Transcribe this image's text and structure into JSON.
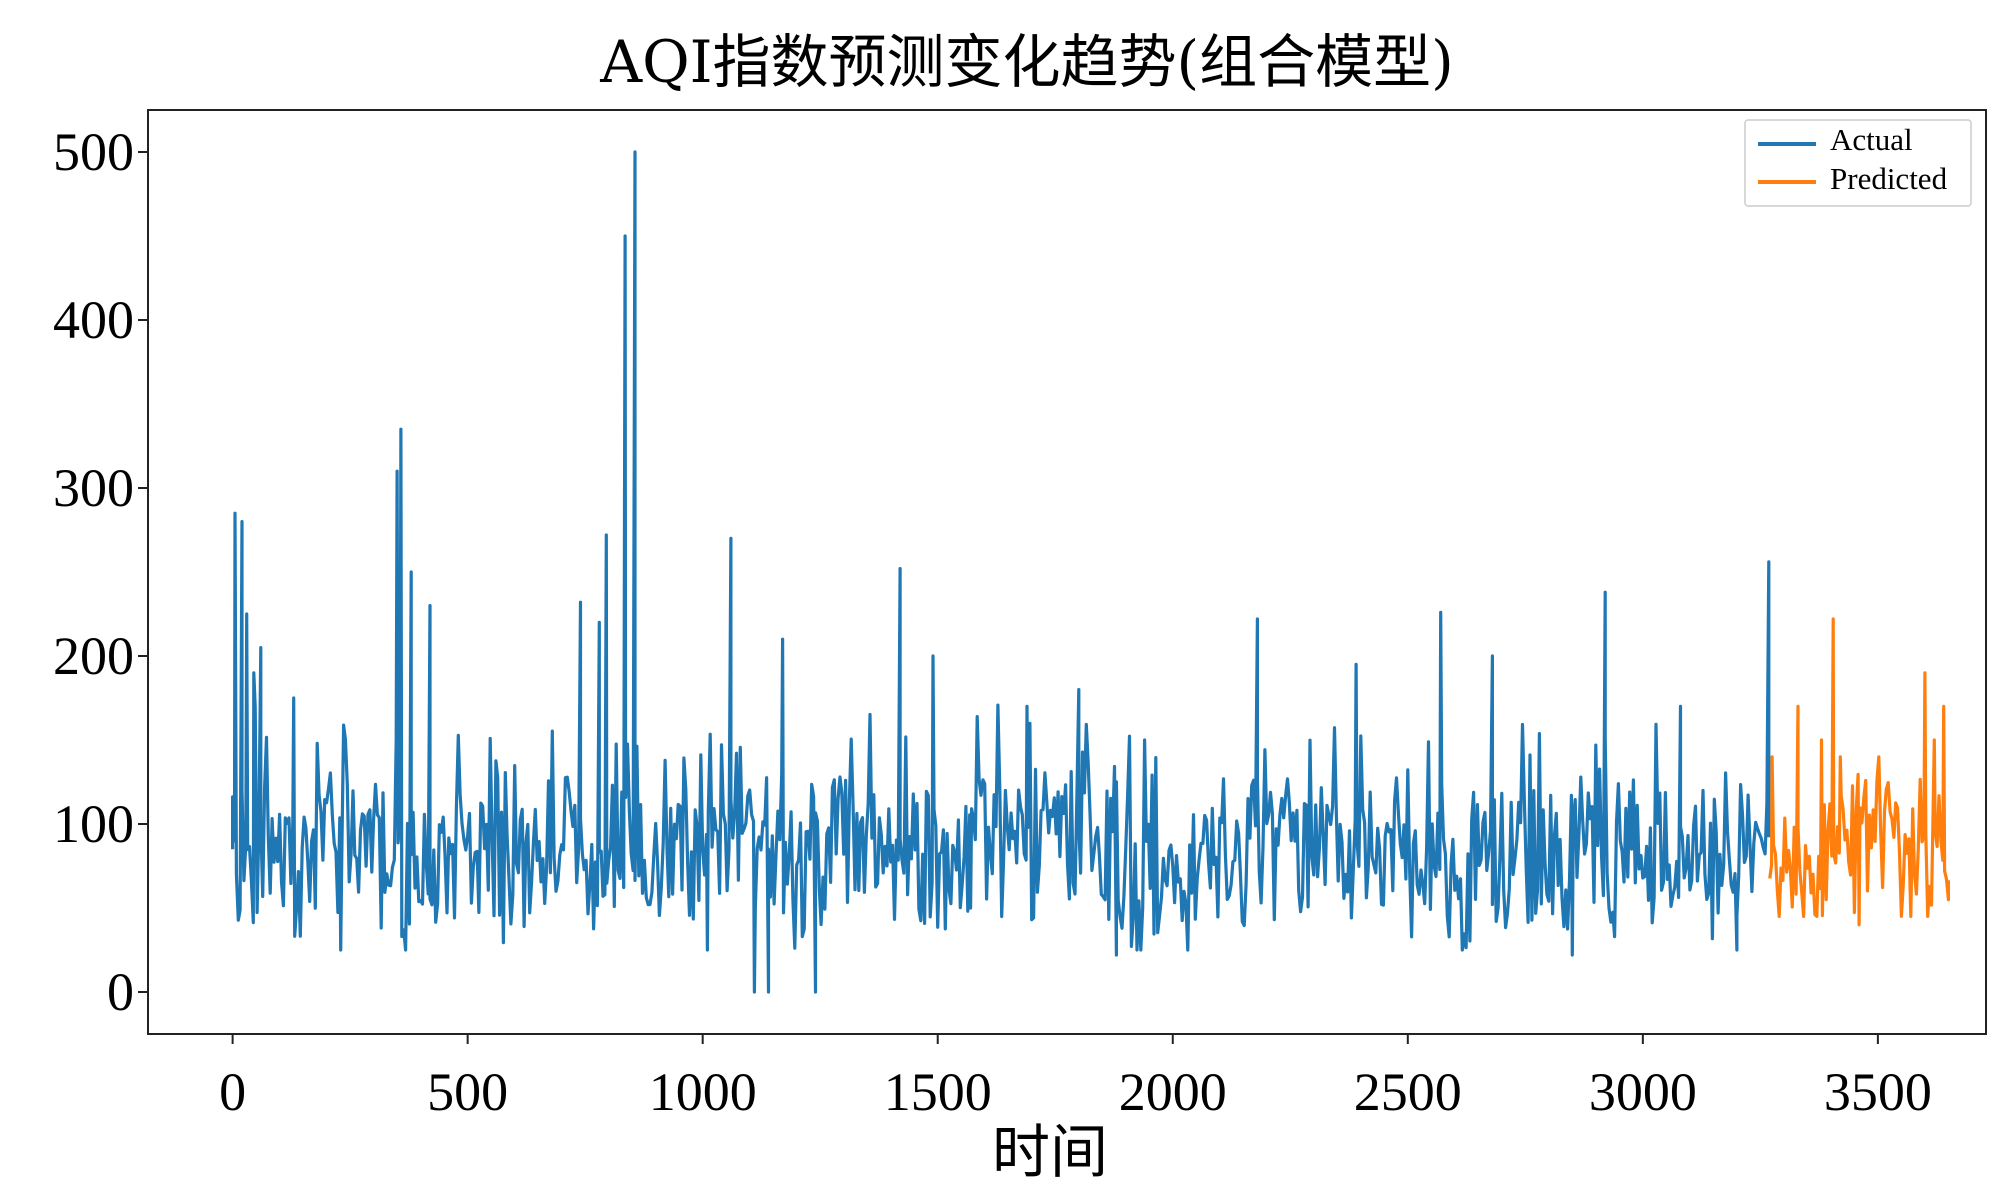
{
  "chart_data": {
    "type": "line",
    "title": "AQI指数预测变化趋势(组合模型)",
    "xlabel": "时间",
    "ylabel": "",
    "xlim": [
      -180,
      3730
    ],
    "ylim": [
      -25,
      525
    ],
    "xticks": [
      0,
      500,
      1000,
      1500,
      2000,
      2500,
      3000,
      3500
    ],
    "yticks": [
      0,
      100,
      200,
      300,
      400,
      500
    ],
    "grid": false,
    "legend": {
      "position": "top-right"
    },
    "series": [
      {
        "name": "Actual",
        "color": "#1f77b4",
        "x_range": [
          0,
          3270
        ],
        "baseline": 75,
        "anchors": [
          [
            0,
            85
          ],
          [
            5,
            285
          ],
          [
            20,
            280
          ],
          [
            30,
            225
          ],
          [
            45,
            190
          ],
          [
            60,
            205
          ],
          [
            130,
            175
          ],
          [
            230,
            25
          ],
          [
            350,
            310
          ],
          [
            358,
            335
          ],
          [
            380,
            250
          ],
          [
            420,
            230
          ],
          [
            740,
            232
          ],
          [
            780,
            220
          ],
          [
            795,
            272
          ],
          [
            835,
            450
          ],
          [
            856,
            500
          ],
          [
            1010,
            25
          ],
          [
            1060,
            270
          ],
          [
            1110,
            0
          ],
          [
            1140,
            0
          ],
          [
            1170,
            210
          ],
          [
            1240,
            0
          ],
          [
            1420,
            252
          ],
          [
            1490,
            200
          ],
          [
            1570,
            50
          ],
          [
            1690,
            170
          ],
          [
            1800,
            180
          ],
          [
            1880,
            22
          ],
          [
            2180,
            222
          ],
          [
            2390,
            195
          ],
          [
            2570,
            226
          ],
          [
            2680,
            200
          ],
          [
            2850,
            22
          ],
          [
            2920,
            238
          ],
          [
            3080,
            170
          ],
          [
            3200,
            25
          ],
          [
            3268,
            256
          ]
        ]
      },
      {
        "name": "Predicted",
        "color": "#ff7f0e",
        "x_range": [
          3270,
          3650
        ],
        "baseline": 82,
        "anchors": [
          [
            3275,
            140
          ],
          [
            3330,
            170
          ],
          [
            3380,
            150
          ],
          [
            3405,
            222
          ],
          [
            3420,
            140
          ],
          [
            3460,
            40
          ],
          [
            3600,
            190
          ],
          [
            3620,
            150
          ],
          [
            3640,
            170
          ],
          [
            3650,
            55
          ]
        ]
      }
    ]
  }
}
